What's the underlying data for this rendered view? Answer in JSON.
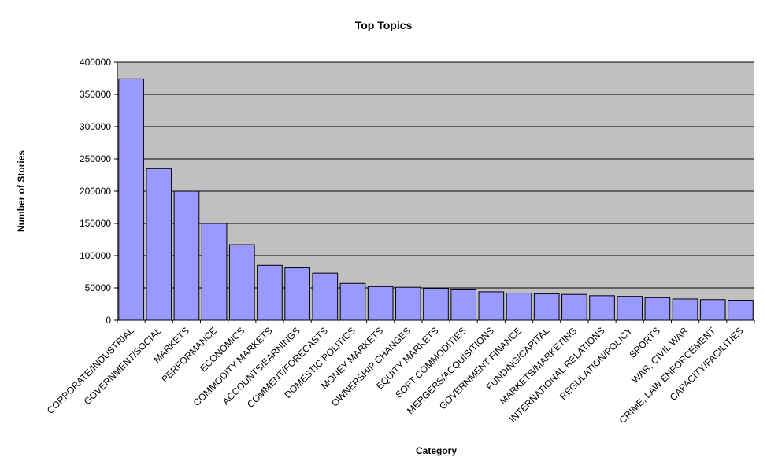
{
  "chart_data": {
    "type": "bar",
    "title": "Top Topics",
    "xlabel": "Category",
    "ylabel": "Number of Stories",
    "ylim": [
      0,
      400000
    ],
    "yticks": [
      "0",
      "50000",
      "100000",
      "150000",
      "200000",
      "250000",
      "300000",
      "350000",
      "400000"
    ],
    "grid": true,
    "categories": [
      "CORPORATE/INDUSTRIAL",
      "GOVERNMENT/SOCIAL",
      "MARKETS",
      "PERFORMANCE",
      "ECONOMICS",
      "COMMODITY MARKETS",
      "ACCOUNTS/EARNINGS",
      "COMMENT/FORECASTS",
      "DOMESTIC POLITICS",
      "MONEY MARKETS",
      "OWNERSHIP CHANGES",
      "EQUITY MARKETS",
      "SOFT COMMODITIES",
      "MERGERS/ACQUISITIONS",
      "GOVERNMENT FINANCE",
      "FUNDING/CAPITAL",
      "MARKETS/MARKETING",
      "INTERNATIONAL RELATIONS",
      "REGULATION/POLICY",
      "SPORTS",
      "WAR, CIVIL WAR",
      "CRIME, LAW ENFORCEMENT",
      "CAPACITY/FACILITIES"
    ],
    "values": [
      374000,
      235000,
      200000,
      150000,
      117000,
      85000,
      81000,
      73000,
      57000,
      52000,
      51000,
      49000,
      47000,
      44000,
      42000,
      41000,
      40000,
      38000,
      37000,
      35000,
      33000,
      32000,
      31000
    ],
    "colors": {
      "bar_fill": "#9999ff",
      "bar_stroke": "#000000",
      "plot_background": "#c0c0c0",
      "gridline": "#000000"
    }
  }
}
